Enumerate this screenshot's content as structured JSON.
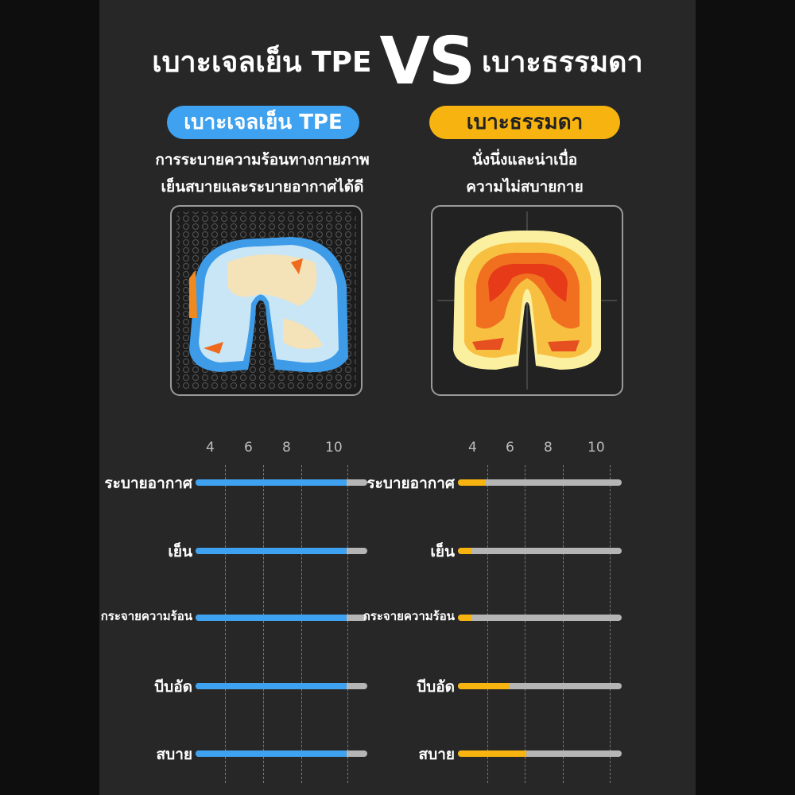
{
  "header": {
    "left": "เบาะเจลเย็น TPE",
    "vs": "VS",
    "right": "เบาะธรรมดา"
  },
  "left": {
    "badge": "เบาะเจลเย็น TPE",
    "desc": [
      "การระบายความร้อนทางกายภาพ",
      "เย็นสบายและระบายอากาศได้ดี"
    ]
  },
  "right": {
    "badge": "เบาะธรรมดา",
    "desc": [
      "นั่งนึ่งและน่าเบื่อ",
      "ความไม่สบายกาย"
    ]
  },
  "colors": {
    "tpe": "#3ea2f0",
    "regular": "#f7b30f",
    "track": "#b5b5b5"
  },
  "chart_data": [
    {
      "type": "bar",
      "orientation": "horizontal",
      "ticks": [
        "4",
        "6",
        "8",
        "10"
      ],
      "categories": [
        "ระบายอากาศ",
        "เย็น",
        "กระจายความร้อน",
        "บีบอัด",
        "สบาย"
      ],
      "values": [
        10,
        10,
        10,
        10,
        10
      ],
      "max": 11,
      "color": "#3ea2f0"
    },
    {
      "type": "bar",
      "orientation": "horizontal",
      "ticks": [
        "4",
        "6",
        "8",
        "10"
      ],
      "categories": [
        "ระบายอากาศ",
        "เย็น",
        "กระจายความร้อน",
        "บีบอัด",
        "สบาย"
      ],
      "values": [
        4,
        3.3,
        3.3,
        5.2,
        6.1
      ],
      "max": 11,
      "color": "#f7b30f"
    }
  ]
}
